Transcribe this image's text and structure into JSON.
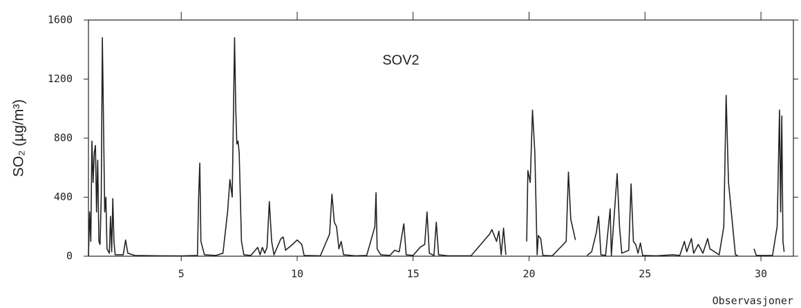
{
  "chart_data": {
    "type": "line",
    "title": "SOV2",
    "xlabel": "Observasjoner",
    "ylabel": "SO₂ (µg/m³)",
    "x": [
      1.0,
      1.05,
      1.1,
      1.15,
      1.2,
      1.25,
      1.3,
      1.35,
      1.4,
      1.45,
      1.5,
      1.55,
      1.6,
      1.65,
      1.7,
      1.75,
      1.8,
      1.9,
      1.95,
      2.0,
      2.05,
      2.1,
      2.15,
      2.5,
      2.6,
      2.7,
      3.0,
      4.0,
      5.0,
      5.7,
      5.75,
      5.8,
      5.85,
      6.0,
      6.5,
      6.8,
      7.0,
      7.1,
      7.2,
      7.3,
      7.35,
      7.4,
      7.45,
      7.5,
      7.6,
      7.7,
      8.0,
      8.3,
      8.4,
      8.5,
      8.6,
      8.7,
      8.8,
      8.9,
      9.0,
      9.3,
      9.4,
      9.5,
      9.8,
      10.0,
      10.2,
      10.3,
      11.0,
      11.4,
      11.5,
      11.6,
      11.7,
      11.8,
      11.9,
      12.0,
      12.5,
      13.0,
      13.35,
      13.4,
      13.45,
      13.6,
      14.0,
      14.2,
      14.4,
      14.6,
      14.7,
      15.0,
      15.3,
      15.5,
      15.6,
      15.7,
      15.9,
      16.0,
      16.1,
      16.5,
      17.5,
      18.3,
      18.4,
      18.6,
      18.7,
      18.8,
      18.9,
      19.0,
      19.5,
      19.9,
      19.95,
      20.05,
      20.15,
      20.25,
      20.35,
      20.4,
      20.5,
      20.6,
      21.0,
      21.6,
      21.7,
      21.8,
      22.0,
      22.2,
      22.5,
      22.7,
      22.9,
      23.0,
      23.1,
      23.3,
      23.5,
      23.55,
      23.8,
      23.9,
      24.0,
      24.3,
      24.4,
      24.5,
      24.6,
      24.7,
      24.8,
      24.9,
      25.5,
      26.2,
      26.5,
      26.7,
      26.8,
      27.0,
      27.1,
      27.3,
      27.5,
      27.7,
      27.8,
      28.0,
      28.2,
      28.4,
      28.5,
      28.6,
      28.9,
      29.0,
      29.3,
      29.7,
      29.8,
      30.5,
      30.7,
      30.8,
      30.85,
      30.9,
      30.95,
      31.0
    ],
    "series": [
      {
        "color": "#222222",
        "values": [
          0,
          300,
          100,
          780,
          500,
          700,
          750,
          300,
          650,
          100,
          80,
          400,
          1480,
          900,
          300,
          400,
          50,
          20,
          270,
          30,
          390,
          100,
          10,
          10,
          110,
          20,
          5,
          3,
          2,
          5,
          400,
          630,
          100,
          10,
          5,
          20,
          300,
          520,
          400,
          1480,
          1000,
          760,
          780,
          700,
          100,
          10,
          5,
          60,
          10,
          60,
          20,
          60,
          370,
          100,
          10,
          120,
          130,
          40,
          80,
          110,
          80,
          5,
          3,
          150,
          420,
          230,
          200,
          50,
          100,
          10,
          3,
          5,
          200,
          430,
          50,
          10,
          5,
          40,
          30,
          220,
          10,
          5,
          60,
          80,
          300,
          20,
          5,
          230,
          10,
          3,
          3,
          150,
          180,
          100,
          170,
          10,
          190,
          10,
          null,
          100,
          580,
          500,
          990,
          700,
          10,
          140,
          120,
          5,
          3,
          100,
          570,
          250,
          110,
          null,
          5,
          30,
          160,
          270,
          10,
          5,
          320,
          5,
          560,
          200,
          20,
          40,
          490,
          100,
          80,
          20,
          90,
          5,
          3,
          10,
          5,
          100,
          30,
          120,
          20,
          80,
          20,
          120,
          50,
          30,
          10,
          200,
          1090,
          500,
          10,
          5,
          null,
          50,
          5,
          5,
          200,
          990,
          300,
          950,
          100,
          30
        ]
      }
    ],
    "xlim": [
      1,
      31.4
    ],
    "ylim": [
      0,
      1600
    ],
    "xticks": [
      5,
      10,
      15,
      20,
      25,
      30
    ],
    "yticks": [
      0,
      400,
      800,
      1200,
      1600
    ]
  }
}
